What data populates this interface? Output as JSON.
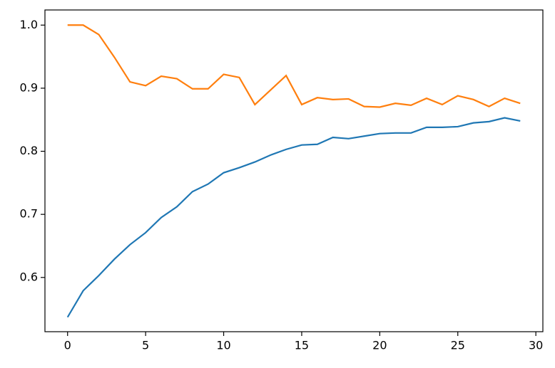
{
  "chart_data": {
    "type": "line",
    "x": [
      0,
      1,
      2,
      3,
      4,
      5,
      6,
      7,
      8,
      9,
      10,
      11,
      12,
      13,
      14,
      15,
      16,
      17,
      18,
      19,
      20,
      21,
      22,
      23,
      24,
      25,
      26,
      27,
      28,
      29
    ],
    "series": [
      {
        "color": "#1f77b4",
        "values": [
          0.537,
          0.579,
          0.603,
          0.629,
          0.652,
          0.671,
          0.695,
          0.712,
          0.736,
          0.748,
          0.766,
          0.774,
          0.783,
          0.794,
          0.803,
          0.81,
          0.811,
          0.822,
          0.82,
          0.824,
          0.828,
          0.829,
          0.829,
          0.838,
          0.838,
          0.839,
          0.845,
          0.847,
          0.853,
          0.848
        ]
      },
      {
        "color": "#ff7f0e",
        "values": [
          1.0,
          1.0,
          0.985,
          0.949,
          0.91,
          0.904,
          0.919,
          0.915,
          0.899,
          0.899,
          0.922,
          0.917,
          0.874,
          0.897,
          0.92,
          0.874,
          0.885,
          0.882,
          0.883,
          0.871,
          0.87,
          0.876,
          0.873,
          0.884,
          0.874,
          0.888,
          0.882,
          0.871,
          0.884,
          0.876
        ]
      }
    ],
    "xlim": [
      -1.45,
      30.45
    ],
    "ylim": [
      0.514,
      1.024
    ],
    "xticks": [
      0,
      5,
      10,
      15,
      20,
      25,
      30
    ],
    "yticks": [
      0.6,
      0.7,
      0.8,
      0.9,
      {
        "value": 1,
        "label": "1.0"
      }
    ],
    "grid": false
  }
}
